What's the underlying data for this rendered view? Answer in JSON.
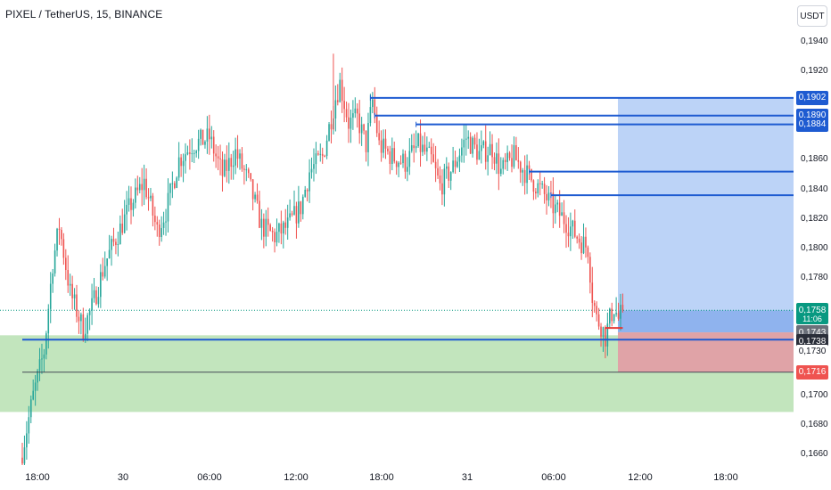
{
  "header": {
    "title": "PIXEL / TetherUS, 15, BINANCE",
    "currency": "USDT"
  },
  "colors": {
    "up": "#26a69a",
    "down": "#ef5350",
    "blue_line": "#1e5bd1",
    "target_zone": "#bcd3f7",
    "stop_zone": "#e0a3a7",
    "green_zone": "#c2e5bd",
    "current_price": "#089981",
    "level_dark": "#444a56"
  },
  "chart_data": {
    "type": "candlestick",
    "title": "PIXEL / TetherUS, 15, BINANCE",
    "x_ticks": [
      "18:00",
      "30",
      "06:00",
      "12:00",
      "18:00",
      "31",
      "06:00",
      "12:00",
      "18:00"
    ],
    "y_ticks": [
      "0,1940",
      "0,1920",
      "0,1860",
      "0,1840",
      "0,1820",
      "0,1800",
      "0,1780",
      "0,1700",
      "0,1680",
      "0,1660"
    ],
    "ylim": [
      0.165,
      0.197
    ],
    "price_labels": [
      {
        "text": "0,1902",
        "bg": "#1e5bd1",
        "color": "#ffffff",
        "value": 0.1902
      },
      {
        "text": "0,1890",
        "bg": "#1e5bd1",
        "color": "#ffffff",
        "value": 0.189
      },
      {
        "text": "0,1884",
        "bg": "#1e5bd1",
        "color": "#ffffff",
        "value": 0.1884
      },
      {
        "text": "0,1758",
        "bg": "#089981",
        "color": "#ffffff",
        "value": 0.1758
      },
      {
        "text": "11:06",
        "bg": "#089981",
        "color": "#ffffff",
        "value": 0.1752
      },
      {
        "text": "0,1743",
        "bg": "#6b707a",
        "color": "#ffffff",
        "value": 0.1743
      },
      {
        "text": "0,1738",
        "bg": "#2a2e39",
        "color": "#ffffff",
        "value": 0.1738
      },
      {
        "text": "0,1730",
        "bg": "#ffffff",
        "color": "#131722",
        "value": 0.173
      },
      {
        "text": "0,1716",
        "bg": "#ef5350",
        "color": "#ffffff",
        "value": 0.1716
      }
    ],
    "horizontal_levels": [
      {
        "name": "resistance-1",
        "value": 0.1902,
        "start_candle": 160
      },
      {
        "name": "resistance-2",
        "value": 0.189,
        "start_candle": 162
      },
      {
        "name": "resistance-3",
        "value": 0.1884,
        "start_candle": 181
      },
      {
        "name": "resistance-4",
        "value": 0.1852,
        "start_candle": 233
      },
      {
        "name": "resistance-5",
        "value": 0.1836,
        "start_candle": 243
      },
      {
        "name": "support-line",
        "value": 0.1738,
        "start_candle": 0
      },
      {
        "name": "stop-line",
        "value": 0.1716,
        "start_candle": 0
      }
    ],
    "zones": {
      "green_support": [
        0.1689,
        0.1741
      ],
      "long_target": [
        0.1758,
        0.1902
      ],
      "long_stop": [
        0.1716,
        0.1743
      ]
    },
    "current_price": 0.1758,
    "keypoints": [
      [
        0,
        0.1662
      ],
      [
        5,
        0.17
      ],
      [
        10,
        0.173
      ],
      [
        14,
        0.179
      ],
      [
        17,
        0.1815
      ],
      [
        22,
        0.177
      ],
      [
        28,
        0.1745
      ],
      [
        32,
        0.176
      ],
      [
        38,
        0.179
      ],
      [
        44,
        0.181
      ],
      [
        50,
        0.183
      ],
      [
        56,
        0.1845
      ],
      [
        62,
        0.1812
      ],
      [
        66,
        0.1825
      ],
      [
        72,
        0.186
      ],
      [
        78,
        0.187
      ],
      [
        86,
        0.1875
      ],
      [
        92,
        0.185
      ],
      [
        98,
        0.1865
      ],
      [
        104,
        0.1845
      ],
      [
        110,
        0.1815
      ],
      [
        116,
        0.1808
      ],
      [
        122,
        0.1815
      ],
      [
        128,
        0.1828
      ],
      [
        132,
        0.1852
      ],
      [
        138,
        0.1862
      ],
      [
        144,
        0.1902
      ],
      [
        146,
        0.1912
      ],
      [
        150,
        0.1885
      ],
      [
        154,
        0.1888
      ],
      [
        158,
        0.187
      ],
      [
        161,
        0.19
      ],
      [
        164,
        0.187
      ],
      [
        170,
        0.1862
      ],
      [
        176,
        0.1858
      ],
      [
        182,
        0.187
      ],
      [
        188,
        0.186
      ],
      [
        192,
        0.1842
      ],
      [
        198,
        0.1855
      ],
      [
        204,
        0.1875
      ],
      [
        210,
        0.1864
      ],
      [
        216,
        0.1868
      ],
      [
        220,
        0.1852
      ],
      [
        226,
        0.1862
      ],
      [
        232,
        0.185
      ],
      [
        238,
        0.184
      ],
      [
        244,
        0.1828
      ],
      [
        250,
        0.1818
      ],
      [
        256,
        0.1806
      ],
      [
        260,
        0.18
      ],
      [
        262,
        0.1768
      ],
      [
        264,
        0.1752
      ],
      [
        266,
        0.1748
      ],
      [
        268,
        0.174
      ],
      [
        270,
        0.1752
      ],
      [
        272,
        0.176
      ],
      [
        274,
        0.1752
      ],
      [
        276,
        0.1758
      ]
    ],
    "candle_count": 277
  }
}
